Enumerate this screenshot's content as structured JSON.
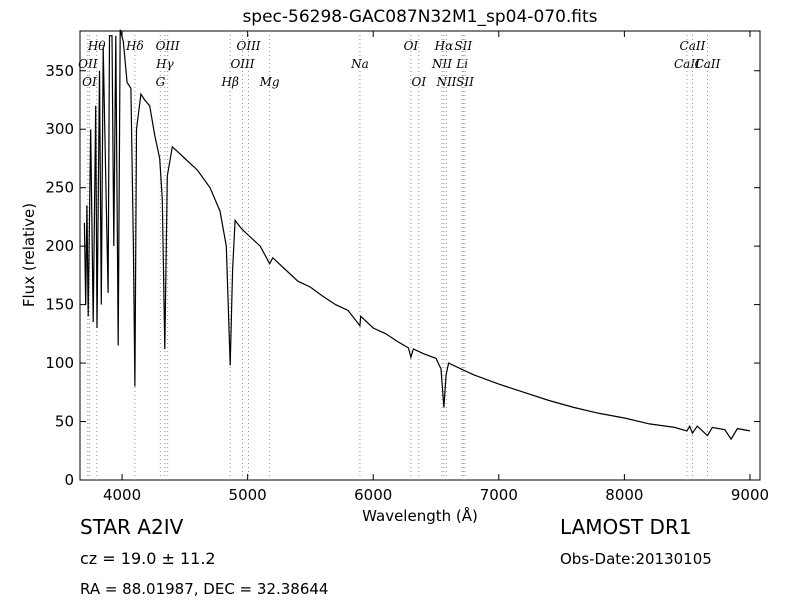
{
  "chart_data": {
    "type": "line",
    "title": "spec-56298-GAC087N32M1_sp04-070.fits",
    "x_label": "Wavelength (Å)",
    "y_label": "Flux (relative)",
    "color": "#000000",
    "line_color": "#5cb85c",
    "xlim": [
      3665,
      9080
    ],
    "ylim": [
      0,
      384
    ],
    "xticks": [
      4000,
      5000,
      6000,
      7000,
      8000,
      9000
    ],
    "yticks": [
      0,
      50,
      100,
      150,
      200,
      250,
      300,
      350
    ],
    "x": [
      3700,
      3710,
      3720,
      3730,
      3750,
      3770,
      3790,
      3800,
      3820,
      3835,
      3850,
      3870,
      3889,
      3900,
      3920,
      3934,
      3950,
      3969,
      3985,
      4010,
      4040,
      4070,
      4090,
      4102,
      4115,
      4150,
      4180,
      4220,
      4260,
      4300,
      4320,
      4340,
      4360,
      4400,
      4450,
      4500,
      4600,
      4700,
      4780,
      4830,
      4861,
      4880,
      4900,
      4950,
      5000,
      5100,
      5175,
      5200,
      5300,
      5400,
      5500,
      5600,
      5700,
      5800,
      5894,
      5900,
      6000,
      6100,
      6200,
      6280,
      6300,
      6320,
      6400,
      6500,
      6540,
      6563,
      6580,
      6600,
      6700,
      6800,
      6900,
      7000,
      7200,
      7400,
      7600,
      7800,
      8000,
      8200,
      8400,
      8498,
      8520,
      8542,
      8580,
      8662,
      8700,
      8800,
      8850,
      8900,
      9000
    ],
    "values": [
      220,
      150,
      235,
      140,
      300,
      135,
      320,
      130,
      350,
      150,
      370,
      260,
      160,
      380,
      380,
      200,
      380,
      115,
      385,
      375,
      340,
      335,
      200,
      80,
      300,
      330,
      325,
      320,
      295,
      275,
      240,
      112,
      260,
      285,
      280,
      275,
      265,
      250,
      230,
      200,
      98,
      180,
      222,
      215,
      210,
      200,
      185,
      190,
      180,
      170,
      165,
      157,
      150,
      145,
      132,
      140,
      130,
      125,
      118,
      113,
      105,
      112,
      108,
      104,
      95,
      62,
      90,
      100,
      95,
      90,
      86,
      82,
      75,
      68,
      62,
      57,
      53,
      48,
      45,
      42,
      46,
      40,
      46,
      38,
      45,
      43,
      35,
      44,
      42
    ],
    "lines": [
      {
        "label": "Hθ",
        "x": 3798
      },
      {
        "label": "OII",
        "x": 3727
      },
      {
        "label": "OI",
        "x": 3740
      },
      {
        "label": "Hδ",
        "x": 4102
      },
      {
        "label": "Hγ",
        "x": 4341
      },
      {
        "label": "G",
        "x": 4305
      },
      {
        "label": "OIII",
        "x": 4363
      },
      {
        "label": "OIII",
        "x": 4959
      },
      {
        "label": "Hβ",
        "x": 4861
      },
      {
        "label": "OIII",
        "x": 5007
      },
      {
        "label": "Na",
        "x": 5894
      },
      {
        "label": "Mg",
        "x": 5175
      },
      {
        "label": "OI",
        "x": 6300
      },
      {
        "label": "NII",
        "x": 6548
      },
      {
        "label": "OI",
        "x": 6363
      },
      {
        "label": "Hα",
        "x": 6563
      },
      {
        "label": "Li",
        "x": 6708
      },
      {
        "label": "NII",
        "x": 6583
      },
      {
        "label": "SII",
        "x": 6717
      },
      {
        "label": "CaII",
        "x": 8498
      },
      {
        "label": "SII",
        "x": 6731
      },
      {
        "label": "CaII",
        "x": 8542
      },
      {
        "label": "CaII",
        "x": 8662
      }
    ],
    "annotations": [
      "STAR   A2IV",
      "cz = 19.0  ± 11.2",
      "RA = 88.01987, DEC = 32.38644",
      "LAMOST DR1",
      "Obs-Date:20130105"
    ]
  }
}
